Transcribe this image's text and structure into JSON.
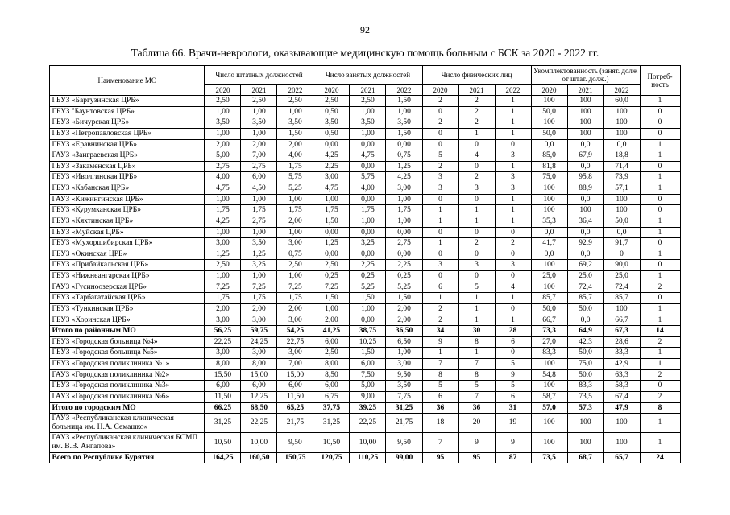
{
  "page": {
    "number": "92",
    "title": "Таблица 66. Врачи-неврологи, оказывающие медицинскую помощь больным с БСК за 2020 - 2022 гг."
  },
  "table": {
    "header": {
      "name_col": "Наименование МО",
      "groups": [
        "Число штатных должностей",
        "Число занятых должностей",
        "Число физических лиц",
        "Укомплектованность (занят. долж от штат. долж.)"
      ],
      "years": [
        "2020",
        "2021",
        "2022"
      ],
      "need_col": "Потреб-ность"
    },
    "rows": [
      {
        "name": "ГБУЗ «Баргузинская ЦРБ»",
        "bold": false,
        "values": [
          "2,50",
          "2,50",
          "2,50",
          "2,50",
          "2,50",
          "1,50",
          "2",
          "2",
          "1",
          "100",
          "100",
          "60,0",
          "1"
        ]
      },
      {
        "name": "ГБУЗ \"Баунтовская ЦРБ»",
        "bold": false,
        "values": [
          "1,00",
          "1,00",
          "1,00",
          "0,50",
          "1,00",
          "1,00",
          "0",
          "2",
          "1",
          "50,0",
          "100",
          "100",
          "0"
        ]
      },
      {
        "name": "ГБУЗ «Бичурская ЦРБ»",
        "bold": false,
        "values": [
          "3,50",
          "3,50",
          "3,50",
          "3,50",
          "3,50",
          "3,50",
          "2",
          "2",
          "1",
          "100",
          "100",
          "100",
          "0"
        ]
      },
      {
        "name": "ГБУЗ «Петропавловская ЦРБ»",
        "bold": false,
        "values": [
          "1,00",
          "1,00",
          "1,50",
          "0,50",
          "1,00",
          "1,50",
          "0",
          "1",
          "1",
          "50,0",
          "100",
          "100",
          "0"
        ]
      },
      {
        "name": "ГБУЗ «Еравнинская ЦРБ»",
        "bold": false,
        "values": [
          "2,00",
          "2,00",
          "2,00",
          "0,00",
          "0,00",
          "0,00",
          "0",
          "0",
          "0",
          "0,0",
          "0,0",
          "0,0",
          "1"
        ]
      },
      {
        "name": "ГАУЗ «Заиграевская ЦРБ»",
        "bold": false,
        "values": [
          "5,00",
          "7,00",
          "4,00",
          "4,25",
          "4,75",
          "0,75",
          "5",
          "4",
          "3",
          "85,0",
          "67,9",
          "18,8",
          "1"
        ]
      },
      {
        "name": "ГБУЗ «Закаменская ЦРБ»",
        "bold": false,
        "values": [
          "2,75",
          "2,75",
          "1,75",
          "2,25",
          "0,00",
          "1,25",
          "2",
          "0",
          "1",
          "81,8",
          "0,0",
          "71,4",
          "0"
        ]
      },
      {
        "name": "ГБУЗ «Иволгинская ЦРБ»",
        "bold": false,
        "values": [
          "4,00",
          "6,00",
          "5,75",
          "3,00",
          "5,75",
          "4,25",
          "3",
          "2",
          "3",
          "75,0",
          "95,8",
          "73,9",
          "1"
        ]
      },
      {
        "name": "ГБУЗ «Кабанская ЦРБ»",
        "bold": false,
        "values": [
          "4,75",
          "4,50",
          "5,25",
          "4,75",
          "4,00",
          "3,00",
          "3",
          "3",
          "3",
          "100",
          "88,9",
          "57,1",
          "1"
        ]
      },
      {
        "name": "ГАУЗ «Кижингинская ЦРБ»",
        "bold": false,
        "values": [
          "1,00",
          "1,00",
          "1,00",
          "1,00",
          "0,00",
          "1,00",
          "0",
          "0",
          "1",
          "100",
          "0,0",
          "100",
          "0"
        ]
      },
      {
        "name": "ГБУЗ «Курумканская ЦРБ»",
        "bold": false,
        "values": [
          "1,75",
          "1,75",
          "1,75",
          "1,75",
          "1,75",
          "1,75",
          "1",
          "1",
          "1",
          "100",
          "100",
          "100",
          "0"
        ]
      },
      {
        "name": "ГБУЗ «Кяхтинская ЦРБ»",
        "bold": false,
        "values": [
          "4,25",
          "2,75",
          "2,00",
          "1,50",
          "1,00",
          "1,00",
          "1",
          "1",
          "1",
          "35,3",
          "36,4",
          "50,0",
          "1"
        ]
      },
      {
        "name": "ГБУЗ «Муйская ЦРБ»",
        "bold": false,
        "values": [
          "1,00",
          "1,00",
          "1,00",
          "0,00",
          "0,00",
          "0,00",
          "0",
          "0",
          "0",
          "0,0",
          "0,0",
          "0,0",
          "1"
        ]
      },
      {
        "name": "ГБУЗ «Мухоршибирская ЦРБ»",
        "bold": false,
        "values": [
          "3,00",
          "3,50",
          "3,00",
          "1,25",
          "3,25",
          "2,75",
          "1",
          "2",
          "2",
          "41,7",
          "92,9",
          "91,7",
          "0"
        ]
      },
      {
        "name": "ГБУЗ «Окинская ЦРБ»",
        "bold": false,
        "values": [
          "1,25",
          "1,25",
          "0,75",
          "0,00",
          "0,00",
          "0,00",
          "0",
          "0",
          "0",
          "0,0",
          "0,0",
          "0",
          "1"
        ]
      },
      {
        "name": "ГБУЗ «Прибайкальская ЦРБ»",
        "bold": false,
        "values": [
          "2,50",
          "3,25",
          "2,50",
          "2,50",
          "2,25",
          "2,25",
          "3",
          "3",
          "3",
          "100",
          "69,2",
          "90,0",
          "0"
        ]
      },
      {
        "name": "ГБУЗ «Нижнеангарская ЦРБ»",
        "bold": false,
        "values": [
          "1,00",
          "1,00",
          "1,00",
          "0,25",
          "0,25",
          "0,25",
          "0",
          "0",
          "0",
          "25,0",
          "25,0",
          "25,0",
          "1"
        ]
      },
      {
        "name": "ГАУЗ «Гусиноозерская ЦРБ»",
        "bold": false,
        "values": [
          "7,25",
          "7,25",
          "7,25",
          "7,25",
          "5,25",
          "5,25",
          "6",
          "5",
          "4",
          "100",
          "72,4",
          "72,4",
          "2"
        ]
      },
      {
        "name": "ГБУЗ «Тарбагатайская ЦРБ»",
        "bold": false,
        "values": [
          "1,75",
          "1,75",
          "1,75",
          "1,50",
          "1,50",
          "1,50",
          "1",
          "1",
          "1",
          "85,7",
          "85,7",
          "85,7",
          "0"
        ]
      },
      {
        "name": "ГБУЗ «Тункинская ЦРБ»",
        "bold": false,
        "values": [
          "2,00",
          "2,00",
          "2,00",
          "1,00",
          "1,00",
          "2,00",
          "2",
          "1",
          "0",
          "50,0",
          "50,0",
          "100",
          "1"
        ]
      },
      {
        "name": "ГБУЗ «Хоринская ЦРБ»",
        "bold": false,
        "values": [
          "3,00",
          "3,00",
          "3,00",
          "2,00",
          "0,00",
          "2,00",
          "2",
          "1",
          "1",
          "66,7",
          "0,0",
          "66,7",
          "1"
        ]
      },
      {
        "name": "Итого по районным МО",
        "bold": true,
        "values": [
          "56,25",
          "59,75",
          "54,25",
          "41,25",
          "38,75",
          "36,50",
          "34",
          "30",
          "28",
          "73,3",
          "64,9",
          "67,3",
          "14"
        ]
      },
      {
        "name": "ГБУЗ «Городская больница №4»",
        "bold": false,
        "values": [
          "22,25",
          "24,25",
          "22,75",
          "6,00",
          "10,25",
          "6,50",
          "9",
          "8",
          "6",
          "27,0",
          "42,3",
          "28,6",
          "2"
        ]
      },
      {
        "name": "ГБУЗ «Городская больница №5»",
        "bold": false,
        "values": [
          "3,00",
          "3,00",
          "3,00",
          "2,50",
          "1,50",
          "1,00",
          "1",
          "1",
          "0",
          "83,3",
          "50,0",
          "33,3",
          "1"
        ]
      },
      {
        "name": "ГБУЗ «Городская поликлиника №1»",
        "bold": false,
        "values": [
          "8,00",
          "8,00",
          "7,00",
          "8,00",
          "6,00",
          "3,00",
          "7",
          "7",
          "5",
          "100",
          "75,0",
          "42,9",
          "1"
        ]
      },
      {
        "name": "ГАУЗ «Городская поликлиника №2»",
        "bold": false,
        "values": [
          "15,50",
          "15,00",
          "15,00",
          "8,50",
          "7,50",
          "9,50",
          "8",
          "8",
          "9",
          "54,8",
          "50,0",
          "63,3",
          "2"
        ]
      },
      {
        "name": "ГБУЗ «Городская поликлиника №3»",
        "bold": false,
        "values": [
          "6,00",
          "6,00",
          "6,00",
          "6,00",
          "5,00",
          "3,50",
          "5",
          "5",
          "5",
          "100",
          "83,3",
          "58,3",
          "0"
        ]
      },
      {
        "name": "ГАУЗ «Городская поликлиника №6»",
        "bold": false,
        "values": [
          "11,50",
          "12,25",
          "11,50",
          "6,75",
          "9,00",
          "7,75",
          "6",
          "7",
          "6",
          "58,7",
          "73,5",
          "67,4",
          "2"
        ]
      },
      {
        "name": "Итого по городским МО",
        "bold": true,
        "values": [
          "66,25",
          "68,50",
          "65,25",
          "37,75",
          "39,25",
          "31,25",
          "36",
          "36",
          "31",
          "57,0",
          "57,3",
          "47,9",
          "8"
        ]
      },
      {
        "name": "ГАУЗ «Республиканская клиническая больница им. Н.А. Семашко»",
        "bold": false,
        "values": [
          "31,25",
          "22,25",
          "21,75",
          "31,25",
          "22,25",
          "21,75",
          "18",
          "20",
          "19",
          "100",
          "100",
          "100",
          "1"
        ]
      },
      {
        "name": "ГАУЗ «Республиканская клиническая БСМП им. В.В. Ангапова»",
        "bold": false,
        "values": [
          "10,50",
          "10,00",
          "9,50",
          "10,50",
          "10,00",
          "9,50",
          "7",
          "9",
          "9",
          "100",
          "100",
          "100",
          "1"
        ]
      },
      {
        "name": "Всего по Республике Бурятия",
        "bold": true,
        "values": [
          "164,25",
          "160,50",
          "150,75",
          "120,75",
          "110,25",
          "99,00",
          "95",
          "95",
          "87",
          "73,5",
          "68,7",
          "65,7",
          "24"
        ]
      }
    ]
  }
}
